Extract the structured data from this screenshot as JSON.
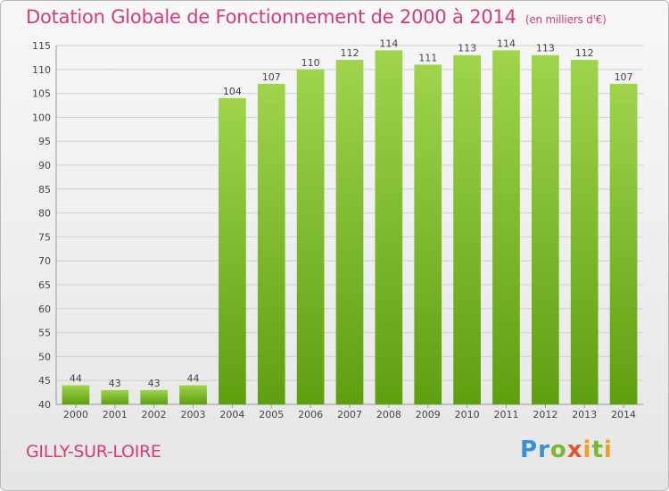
{
  "header": {
    "title": "Dotation Globale de Fonctionnement de 2000 à 2014",
    "subtitle": "(en milliers d'€)"
  },
  "footer": {
    "commune": "GILLY-SUR-LOIRE",
    "logo_text": "Proxiti"
  },
  "colors": {
    "bar_top": "#9fd44c",
    "bar_bottom": "#5e9f10",
    "title": "#d63a7a"
  },
  "chart_data": {
    "type": "bar",
    "categories": [
      "2000",
      "2001",
      "2002",
      "2003",
      "2004",
      "2005",
      "2006",
      "2007",
      "2008",
      "2009",
      "2010",
      "2011",
      "2012",
      "2013",
      "2014"
    ],
    "values": [
      44,
      43,
      43,
      44,
      104,
      107,
      110,
      112,
      114,
      111,
      113,
      114,
      113,
      112,
      107
    ],
    "title": "Dotation Globale de Fonctionnement de 2000 à 2014",
    "subtitle": "(en milliers d'€)",
    "xlabel": "",
    "ylabel": "",
    "ylim": [
      40,
      115
    ],
    "yticks": [
      40,
      45,
      50,
      55,
      60,
      65,
      70,
      75,
      80,
      85,
      90,
      95,
      100,
      105,
      110,
      115
    ],
    "grid": true
  }
}
